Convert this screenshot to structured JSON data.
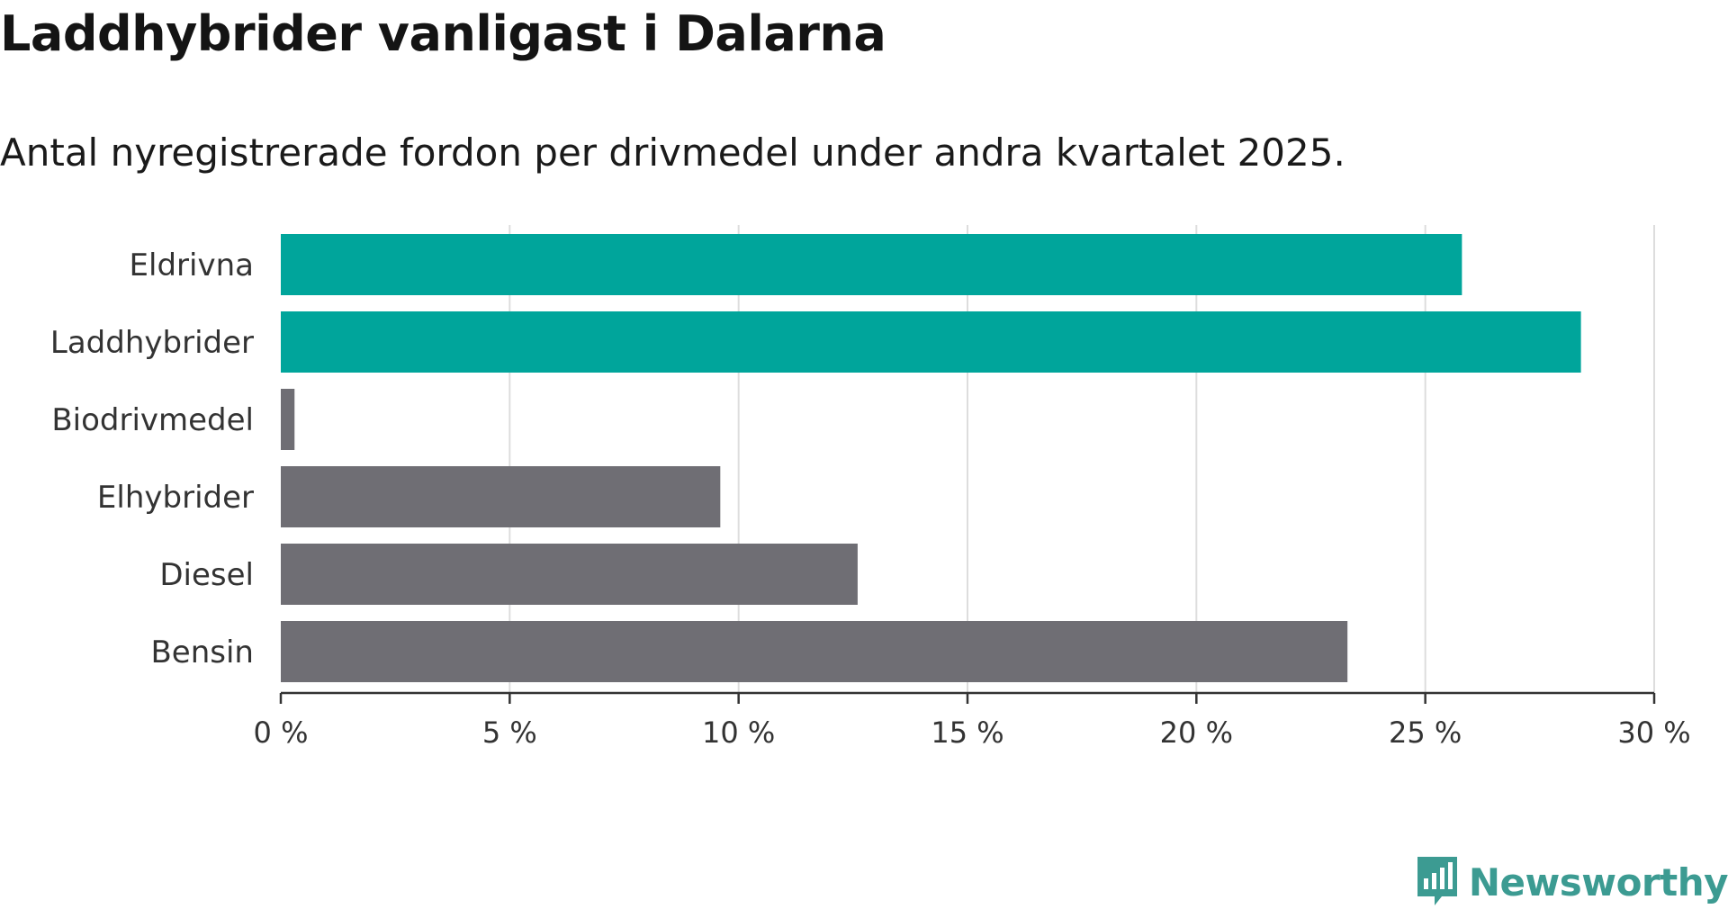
{
  "header": {
    "title": "Laddhybrider vanligast i Dalarna",
    "subtitle": "Antal nyregistrerade fordon per drivmedel under andra kvartalet 2025."
  },
  "colors": {
    "highlight": "#00a59b",
    "default": "#6f6e74",
    "grid": "#dddddd",
    "axis": "#333333"
  },
  "chart_data": {
    "type": "bar",
    "orientation": "horizontal",
    "categories": [
      "Eldrivna",
      "Laddhybrider",
      "Biodrivmedel",
      "Elhybrider",
      "Diesel",
      "Bensin"
    ],
    "values": [
      25.8,
      28.4,
      0.3,
      9.6,
      12.6,
      23.3
    ],
    "highlighted": [
      true,
      true,
      false,
      false,
      false,
      false
    ],
    "xlim": [
      0,
      30
    ],
    "xticks": [
      0,
      5,
      10,
      15,
      20,
      25,
      30
    ],
    "xtick_labels": [
      "0 %",
      "5 %",
      "10 %",
      "15 %",
      "20 %",
      "25 %",
      "30 %"
    ],
    "grid": true
  },
  "logo": {
    "text": "Newsworthy",
    "icon": "newsworthy-logo-icon"
  }
}
